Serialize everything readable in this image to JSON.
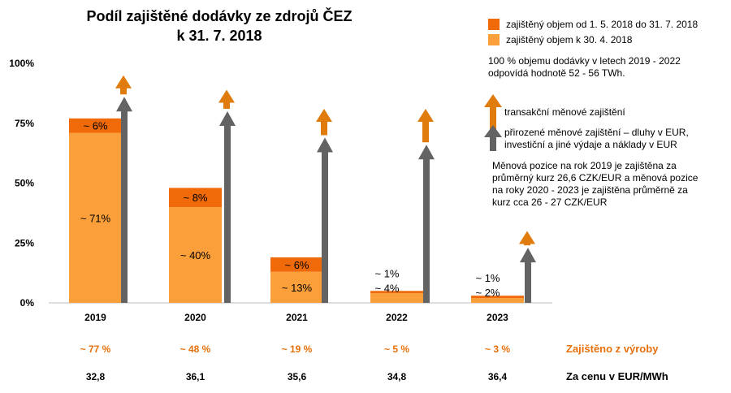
{
  "chart_data": {
    "type": "bar",
    "title_line1": "Podíl zajištěné dodávky ze zdrojů ČEZ",
    "title_line2": "k 31. 7. 2018",
    "categories": [
      "2019",
      "2020",
      "2021",
      "2022",
      "2023"
    ],
    "yticks": [
      "0%",
      "25%",
      "50%",
      "75%",
      "100%"
    ],
    "ylim": [
      0,
      100
    ],
    "series": [
      {
        "name": "zajištěný objem k 30. 4. 2018",
        "values": [
          71,
          40,
          13,
          4,
          2
        ],
        "labels": [
          "~ 71%",
          "~ 40%",
          "~ 13%",
          "~ 4%",
          "~ 2%"
        ],
        "color": "#fb9f3a"
      },
      {
        "name": "zajištěný objem od 1. 5. 2018 do 31. 7. 2018",
        "values": [
          6,
          8,
          6,
          1,
          1
        ],
        "labels": [
          "~ 6%",
          "~ 8%",
          "~ 6%",
          "~ 1%",
          "~ 1%"
        ],
        "color": "#f06a0a"
      }
    ],
    "natural_hedge_level": [
      86,
      80,
      69,
      66,
      23
    ],
    "transaction_hedge_level": [
      95,
      89,
      81,
      81,
      30
    ],
    "colors": {
      "bar_light": "#fb9f3a",
      "bar_dark": "#f06a0a",
      "arrow_orange": "#e07b0d",
      "arrow_gray": "#636363",
      "accent_text": "#e8700a"
    }
  },
  "legend": {
    "dark": "zajištěný objem od 1. 5. 2018 do 31. 7. 2018",
    "light": "zajištěný objem k 30. 4. 2018"
  },
  "note1_line1": "100 % objemu dodávky v letech 2019 - 2022",
  "note1_line2": "odpovídá hodnotě 52 - 56 TWh.",
  "arrow_legend": {
    "orange": "transakční měnové zajištění",
    "gray_line1": "přirozené měnové zajištění – dluhy v EUR,",
    "gray_line2": "investiční a jiné výdaje a náklady v EUR"
  },
  "note2": [
    "Měnová pozice na rok 2019 je zajištěna za",
    "průměrný kurz 26,6 CZK/EUR a měnová pozice",
    "na roky 2020 - 2023 je zajištěna průměrně za",
    "kurz cca 26 - 27 CZK/EUR"
  ],
  "footer": {
    "pct_values": [
      "~ 77 %",
      "~ 48 %",
      "~ 19 %",
      "~ 5 %",
      "~ 3 %"
    ],
    "pct_label": "Zajištěno z výroby",
    "prices": [
      "32,8",
      "36,1",
      "35,6",
      "34,8",
      "36,4"
    ],
    "price_label": "Za cenu v EUR/MWh"
  }
}
